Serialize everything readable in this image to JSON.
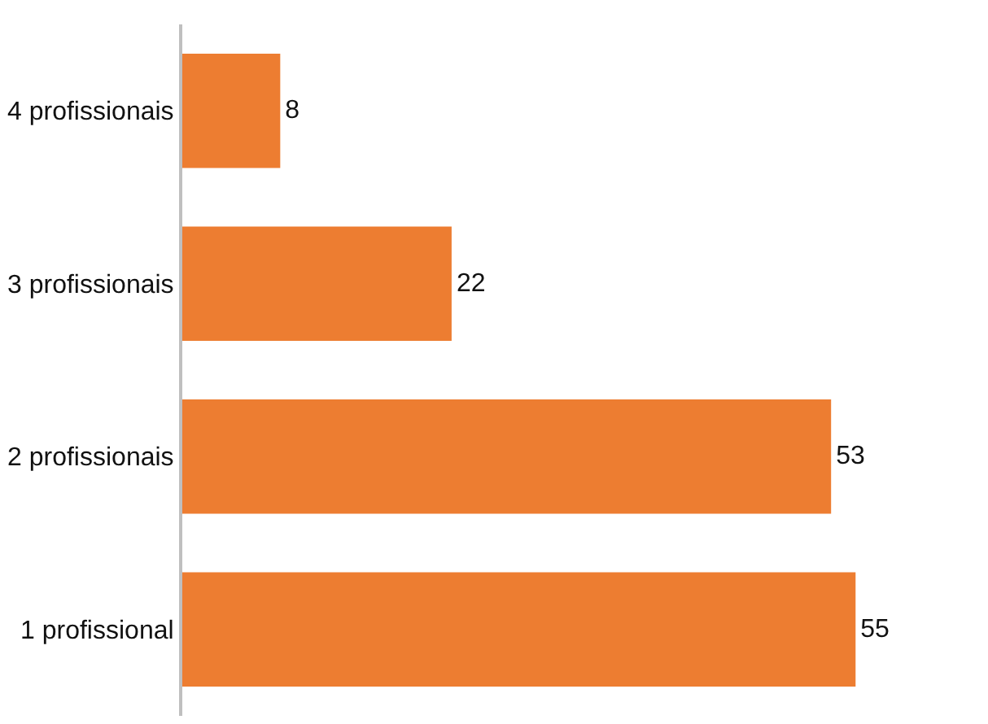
{
  "chart_data": {
    "type": "bar",
    "orientation": "horizontal",
    "categories": [
      "4 profissionais",
      "3 profissionais",
      "2 profissionais",
      "1 profissional"
    ],
    "values": [
      8,
      22,
      53,
      55
    ],
    "color": "#ed7d31",
    "data_labels": true,
    "legend": false,
    "tick_labels": "y"
  }
}
